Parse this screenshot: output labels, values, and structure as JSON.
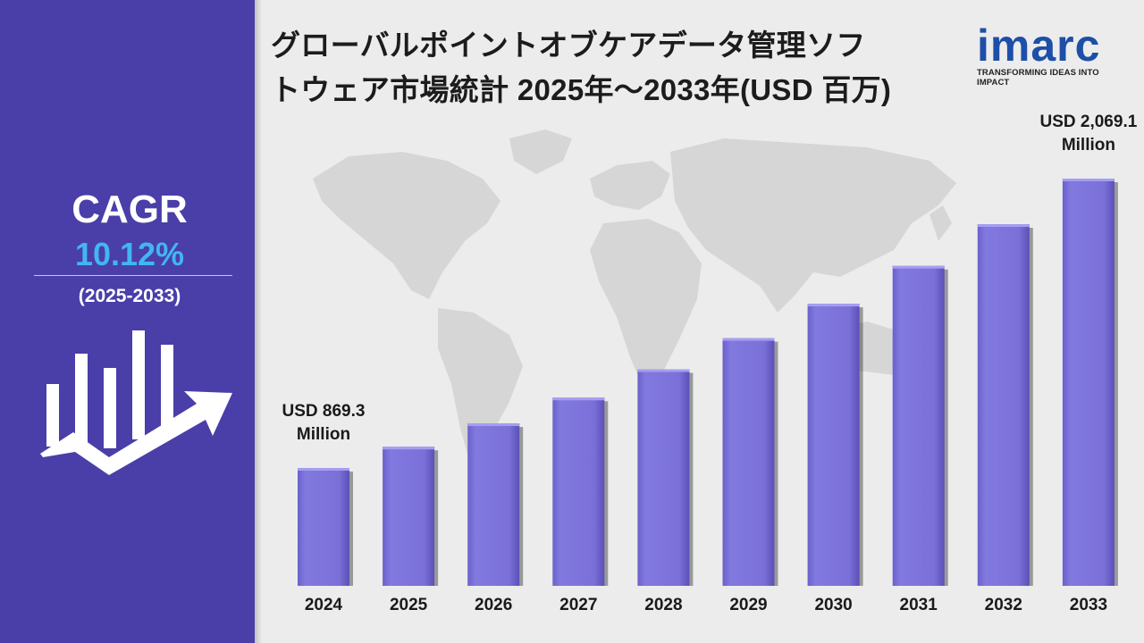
{
  "title": {
    "line1": "グローバルポイントオブケアデータ管理ソフ",
    "line2": "トウェア市場統計 2025年～2033年(USD 百万)"
  },
  "logo": {
    "word": "imarc",
    "tagline": "TRANSFORMING IDEAS INTO IMPACT"
  },
  "cagr": {
    "label": "CAGR",
    "value": "10.12%",
    "period": "(2025-2033)"
  },
  "colors": {
    "panel": "#4a3ea9",
    "accent": "#42b6f0",
    "bar": "#7c72d9",
    "logo": "#1e4fa8"
  },
  "chart_data": {
    "type": "bar",
    "categories": [
      "2024",
      "2025",
      "2026",
      "2027",
      "2028",
      "2029",
      "2030",
      "2031",
      "2032",
      "2033"
    ],
    "values": [
      869.3,
      957.3,
      1054.2,
      1160.9,
      1278.4,
      1407.8,
      1550.3,
      1707.2,
      1880.0,
      2069.1
    ],
    "annotations": [
      {
        "category": "2024",
        "lines": [
          "USD 869.3",
          "Million"
        ]
      },
      {
        "category": "2033",
        "lines": [
          "USD 2,069.1",
          "Million"
        ]
      }
    ],
    "ylim": [
      0,
      2069.1
    ],
    "grid": false,
    "legend": "none"
  }
}
